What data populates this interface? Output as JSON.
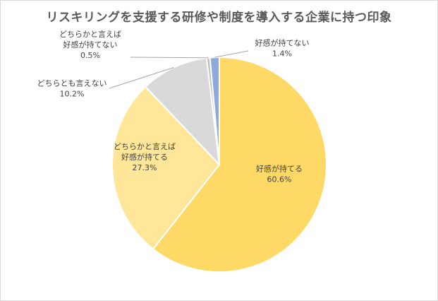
{
  "chart_data": {
    "type": "pie",
    "title": "リスキリングを支援する研修や制度を導入する企業に持つ印象",
    "slices": [
      {
        "label_lines": [
          "好感が持てる"
        ],
        "value": 60.6,
        "value_label": "60.6%",
        "color": "#FFD966",
        "label_pos": "inside"
      },
      {
        "label_lines": [
          "どちらかと言えば",
          "好感が持てる"
        ],
        "value": 27.3,
        "value_label": "27.3%",
        "color": "#FFE699",
        "label_pos": "inside"
      },
      {
        "label_lines": [
          "どちらとも言えない"
        ],
        "value": 10.2,
        "value_label": "10.2%",
        "color": "#D9D9D9",
        "label_pos": "outside-left"
      },
      {
        "label_lines": [
          "どちらかと言えば",
          "好感が持てない"
        ],
        "value": 0.5,
        "value_label": "0.5%",
        "color": "#BFBFBF",
        "label_pos": "outside-left"
      },
      {
        "label_lines": [
          "好感が持てない"
        ],
        "value": 1.4,
        "value_label": "1.4%",
        "color": "#8EA9DB",
        "label_pos": "outside-right"
      }
    ],
    "start": "12 o'clock",
    "direction": "clockwise",
    "legend": "none"
  }
}
